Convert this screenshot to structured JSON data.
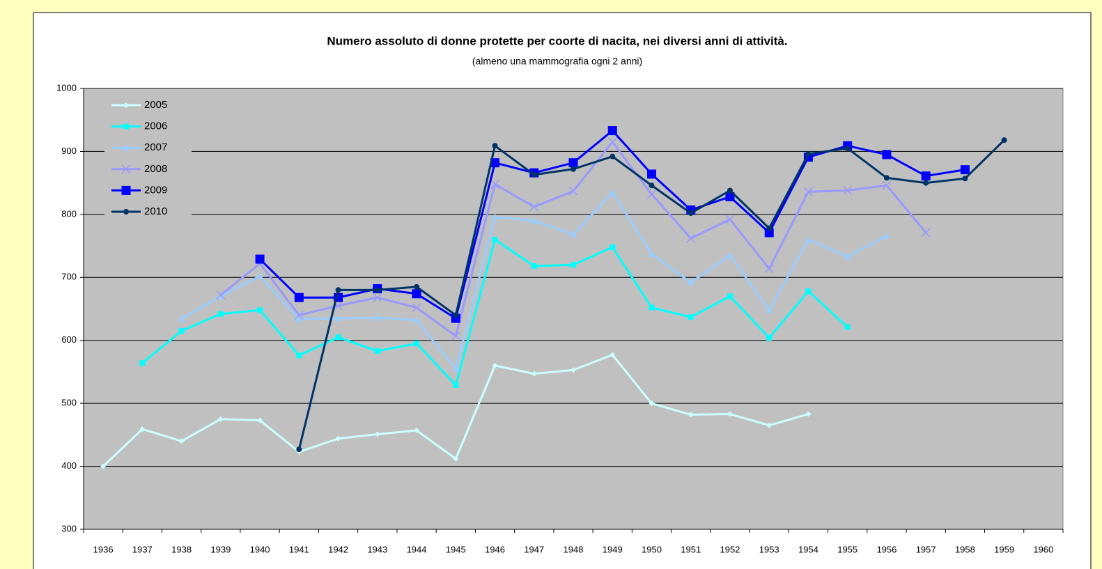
{
  "chart_data": {
    "type": "line",
    "title": "Numero assoluto di donne protette per coorte di nacita, nei diversi anni di attività.",
    "subtitle": "(almeno una mammografia ogni 2 anni)",
    "categories": [
      "1936",
      "1937",
      "1938",
      "1939",
      "1940",
      "1941",
      "1942",
      "1943",
      "1944",
      "1945",
      "1946",
      "1947",
      "1948",
      "1949",
      "1950",
      "1951",
      "1952",
      "1953",
      "1954",
      "1955",
      "1956",
      "1957",
      "1958",
      "1959",
      "1960"
    ],
    "series": [
      {
        "name": "2005",
        "color": "#ccffff",
        "marker": "diamond",
        "values": [
          400,
          459,
          440,
          475,
          473,
          423,
          444,
          451,
          457,
          412,
          560,
          547,
          553,
          577,
          500,
          482,
          483,
          465,
          483,
          null,
          null,
          null,
          null,
          null,
          null
        ]
      },
      {
        "name": "2006",
        "color": "#00ffff",
        "marker": "square",
        "values": [
          null,
          564,
          615,
          642,
          648,
          576,
          605,
          583,
          595,
          529,
          760,
          718,
          720,
          748,
          652,
          637,
          670,
          604,
          678,
          621,
          null,
          null,
          null,
          null,
          null
        ]
      },
      {
        "name": "2007",
        "color": "#99ccff",
        "marker": "triangle",
        "values": [
          null,
          null,
          634,
          670,
          702,
          634,
          635,
          636,
          632,
          555,
          796,
          790,
          768,
          835,
          737,
          692,
          735,
          648,
          760,
          733,
          766,
          null,
          null,
          null,
          null
        ]
      },
      {
        "name": "2008",
        "color": "#9999ff",
        "marker": "x",
        "values": [
          null,
          null,
          null,
          672,
          722,
          640,
          655,
          668,
          652,
          607,
          848,
          812,
          837,
          915,
          832,
          762,
          792,
          714,
          836,
          838,
          846,
          771,
          null,
          null,
          null
        ]
      },
      {
        "name": "2009",
        "color": "#0000ff",
        "marker": "bigsquare",
        "values": [
          null,
          null,
          null,
          null,
          729,
          668,
          668,
          682,
          674,
          635,
          882,
          866,
          882,
          933,
          864,
          807,
          828,
          771,
          891,
          909,
          895,
          861,
          871,
          null,
          null
        ]
      },
      {
        "name": "2010",
        "color": "#003366",
        "marker": "circle",
        "values": [
          null,
          null,
          null,
          null,
          null,
          427,
          680,
          680,
          685,
          640,
          909,
          863,
          872,
          892,
          846,
          802,
          838,
          778,
          896,
          905,
          858,
          850,
          857,
          918,
          null
        ]
      }
    ],
    "ylim": [
      300,
      1000
    ],
    "yticks": [
      300,
      400,
      500,
      600,
      700,
      800,
      900,
      1000
    ],
    "grid": true,
    "legend": "top-left"
  }
}
